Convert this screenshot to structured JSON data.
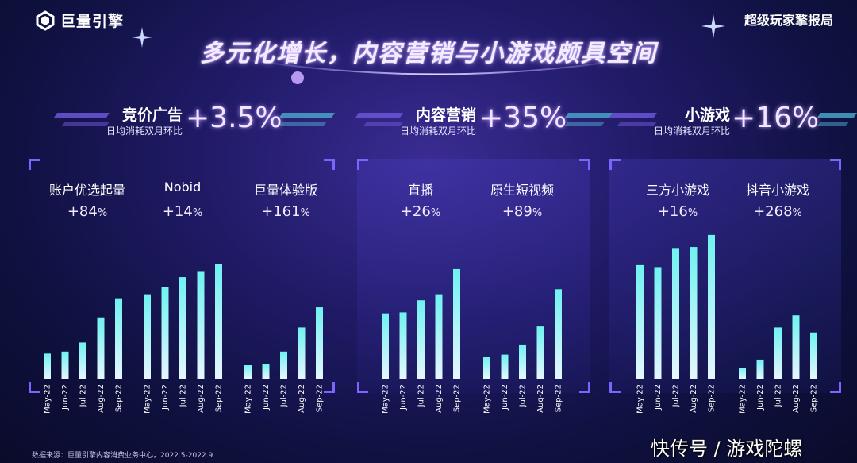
{
  "header": {
    "logo_text": "巨量引擎",
    "brand_right": "超级玩家擎报局",
    "title": "多元化增长，内容营销与小游戏颇具空间"
  },
  "metrics": [
    {
      "name": "竞价广告",
      "sub": "日均消耗双月环比",
      "pct": "+3.5%"
    },
    {
      "name": "内容营销",
      "sub": "日均消耗双月环比",
      "pct": "+35%"
    },
    {
      "name": "小游戏",
      "sub": "日均消耗双月环比",
      "pct": "+16%"
    }
  ],
  "chart_data": {
    "type": "bar",
    "categories": [
      "May-22",
      "Jun-22",
      "Jul-22",
      "Aug-22",
      "Sep-22"
    ],
    "groups": [
      {
        "name": "竞价广告",
        "series": [
          {
            "name": "账户优选起量",
            "growth_num": "+84",
            "growth_pct": "%",
            "values": [
              25,
              27,
              36,
              61,
              80
            ]
          },
          {
            "name": "Nobid",
            "growth_num": "+14",
            "growth_pct": "%",
            "values": [
              84,
              91,
              101,
              107,
              114
            ]
          },
          {
            "name": "巨量体验版",
            "growth_num": "+161",
            "growth_pct": "%",
            "values": [
              14,
              15,
              27,
              51,
              71
            ]
          }
        ]
      },
      {
        "name": "内容营销",
        "series": [
          {
            "name": "直播",
            "growth_num": "+26",
            "growth_pct": "%",
            "values": [
              65,
              66,
              78,
              84,
              109
            ]
          },
          {
            "name": "原生短视频",
            "growth_num": "+89",
            "growth_pct": "%",
            "values": [
              22,
              24,
              34,
              52,
              89
            ]
          }
        ]
      },
      {
        "name": "小游戏",
        "series": [
          {
            "name": "三方小游戏",
            "growth_num": "+16",
            "growth_pct": "%",
            "values": [
              113,
              111,
              130,
              131,
              143
            ]
          },
          {
            "name": "抖音小游戏",
            "growth_num": "+268",
            "growth_pct": "%",
            "values": [
              11,
              19,
              51,
              63,
              46
            ]
          }
        ]
      }
    ],
    "colors": {
      "bar_top": "#6ff2f0",
      "bar_bottom": "#e6f6ff"
    }
  },
  "footer": {
    "source": "数据来源：巨量引擎内容消费业务中心，2022.5-2022.9"
  },
  "watermark": "快传号 / 游戏陀螺"
}
